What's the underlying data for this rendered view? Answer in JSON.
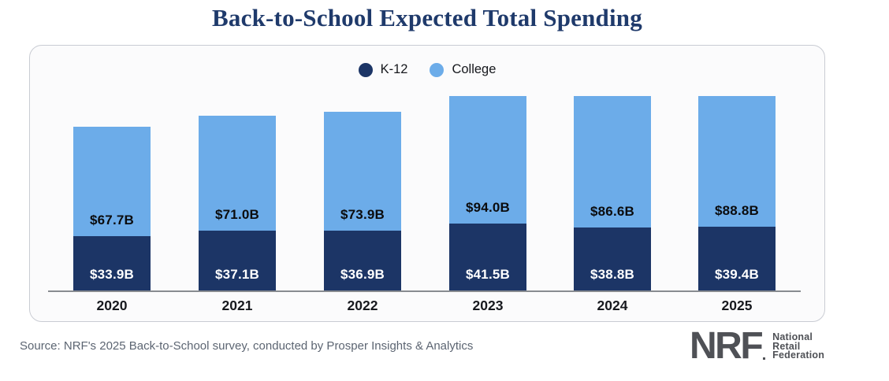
{
  "chart_data": {
    "type": "bar",
    "stacked": true,
    "title": "Back-to-School Expected Total Spending",
    "categories": [
      "2020",
      "2021",
      "2022",
      "2023",
      "2024",
      "2025"
    ],
    "series": [
      {
        "name": "K-12",
        "color": "#1C3566",
        "values": [
          33.9,
          37.1,
          36.9,
          41.5,
          38.8,
          39.4
        ],
        "labels": [
          "$33.9B",
          "$37.1B",
          "$36.9B",
          "$41.5B",
          "$38.8B",
          "$39.4B"
        ],
        "label_color": "#FFFFFF"
      },
      {
        "name": "College",
        "color": "#6CACE9",
        "values": [
          67.7,
          71.0,
          73.9,
          94.0,
          86.6,
          88.8
        ],
        "labels": [
          "$67.7B",
          "$71.0B",
          "$73.9B",
          "$94.0B",
          "$86.6B",
          "$88.8B"
        ],
        "label_color": "#0B0C0E"
      }
    ],
    "unit": "billions of US dollars",
    "xlabel": "",
    "ylabel": "",
    "grid": false,
    "legend_position": "top-center",
    "value_labels": "inside"
  },
  "source_note": "Source: NRF's 2025 Back-to-School survey, conducted by Prosper Insights & Analytics",
  "logo": {
    "abbr": "NRF",
    "lines": [
      "National",
      "Retail",
      "Federation"
    ]
  },
  "colors": {
    "title": "#1F3A6B",
    "k12_bar": "#1C3566",
    "college_bar": "#6CACE9",
    "axis": "#888B90",
    "source_text": "#5C6572",
    "logo": "#4F5156",
    "card_border": "#C9CCD3",
    "card_bg": "#FBFBFC"
  }
}
